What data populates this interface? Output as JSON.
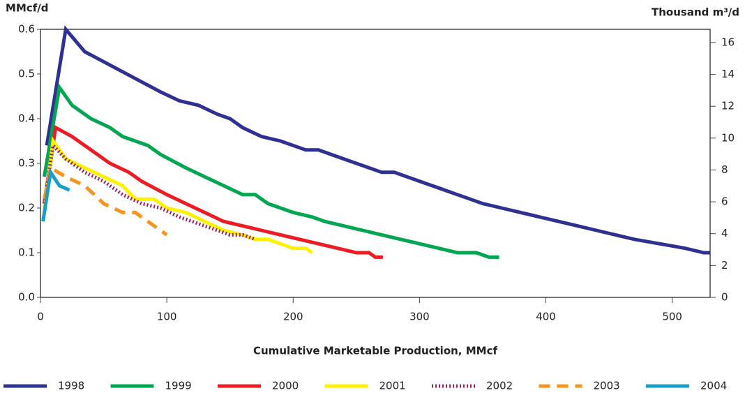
{
  "chart_data": {
    "type": "line",
    "y_label": "MMcf/d",
    "y2_label": "Thousand m³/d",
    "x_label": "Cumulative Marketable Production, MMcf",
    "xlim": [
      0,
      530
    ],
    "xticks": [
      0,
      100,
      200,
      300,
      400,
      500
    ],
    "ylim": [
      0,
      0.6
    ],
    "yticks": [
      {
        "value": 0,
        "label": "0.0"
      },
      0.1,
      0.2,
      0.3,
      0.4,
      0.5,
      0.6
    ],
    "y2lim": [
      0,
      16.83
    ],
    "y2ticks": [
      0,
      2,
      4,
      6,
      8,
      10,
      12,
      14,
      16
    ],
    "grid": false,
    "legend": "bottom",
    "series": [
      {
        "name": "1998",
        "color": "#2e3192",
        "dash": "solid",
        "x": [
          5,
          20,
          35,
          55,
          75,
          95,
          110,
          125,
          140,
          150,
          160,
          175,
          190,
          210,
          220,
          240,
          260,
          270,
          280,
          290,
          300,
          310,
          320,
          330,
          340,
          350,
          365,
          380,
          395,
          410,
          425,
          440,
          455,
          470,
          490,
          510,
          525,
          530
        ],
        "values": [
          0.34,
          0.6,
          0.55,
          0.52,
          0.49,
          0.46,
          0.44,
          0.43,
          0.41,
          0.4,
          0.38,
          0.36,
          0.35,
          0.33,
          0.33,
          0.31,
          0.29,
          0.28,
          0.28,
          0.27,
          0.26,
          0.25,
          0.24,
          0.23,
          0.22,
          0.21,
          0.2,
          0.19,
          0.18,
          0.17,
          0.16,
          0.15,
          0.14,
          0.13,
          0.12,
          0.11,
          0.1,
          0.1
        ]
      },
      {
        "name": "1999",
        "color": "#00a651",
        "dash": "solid",
        "x": [
          3,
          15,
          25,
          40,
          55,
          65,
          85,
          95,
          115,
          130,
          145,
          160,
          170,
          180,
          200,
          215,
          225,
          240,
          255,
          270,
          285,
          300,
          315,
          330,
          345,
          355,
          363
        ],
        "values": [
          0.27,
          0.47,
          0.43,
          0.4,
          0.38,
          0.36,
          0.34,
          0.32,
          0.29,
          0.27,
          0.25,
          0.23,
          0.23,
          0.21,
          0.19,
          0.18,
          0.17,
          0.16,
          0.15,
          0.14,
          0.13,
          0.12,
          0.11,
          0.1,
          0.1,
          0.09,
          0.09
        ]
      },
      {
        "name": "2000",
        "color": "#ed1c24",
        "dash": "solid",
        "x": [
          3,
          12,
          25,
          40,
          55,
          70,
          80,
          100,
          115,
          130,
          145,
          160,
          175,
          190,
          205,
          220,
          235,
          250,
          260,
          265,
          271
        ],
        "values": [
          0.21,
          0.38,
          0.36,
          0.33,
          0.3,
          0.28,
          0.26,
          0.23,
          0.21,
          0.19,
          0.17,
          0.16,
          0.15,
          0.14,
          0.13,
          0.12,
          0.11,
          0.1,
          0.1,
          0.09,
          0.09
        ]
      },
      {
        "name": "2001",
        "color": "#fff200",
        "dash": "solid",
        "x": [
          3,
          10,
          20,
          35,
          50,
          65,
          75,
          90,
          100,
          115,
          130,
          145,
          160,
          170,
          180,
          190,
          200,
          210,
          215
        ],
        "values": [
          0.19,
          0.35,
          0.31,
          0.29,
          0.27,
          0.25,
          0.22,
          0.22,
          0.2,
          0.19,
          0.17,
          0.15,
          0.14,
          0.13,
          0.13,
          0.12,
          0.11,
          0.11,
          0.1
        ]
      },
      {
        "name": "2002",
        "color": "#9e1f63",
        "dash": "dotted",
        "x": [
          3,
          10,
          20,
          35,
          50,
          65,
          80,
          95,
          110,
          130,
          150,
          160,
          170
        ],
        "values": [
          0.21,
          0.34,
          0.31,
          0.28,
          0.26,
          0.23,
          0.21,
          0.2,
          0.18,
          0.16,
          0.14,
          0.14,
          0.13
        ]
      },
      {
        "name": "2003",
        "color": "#f7941d",
        "dash": "dashed",
        "x": [
          3,
          8,
          20,
          35,
          50,
          65,
          75,
          85,
          100
        ],
        "values": [
          0.22,
          0.29,
          0.27,
          0.25,
          0.21,
          0.19,
          0.19,
          0.17,
          0.14
        ]
      },
      {
        "name": "2004",
        "color": "#1b9dc9",
        "dash": "solid",
        "x": [
          2,
          8,
          15,
          23
        ],
        "values": [
          0.17,
          0.28,
          0.25,
          0.24
        ]
      }
    ]
  }
}
